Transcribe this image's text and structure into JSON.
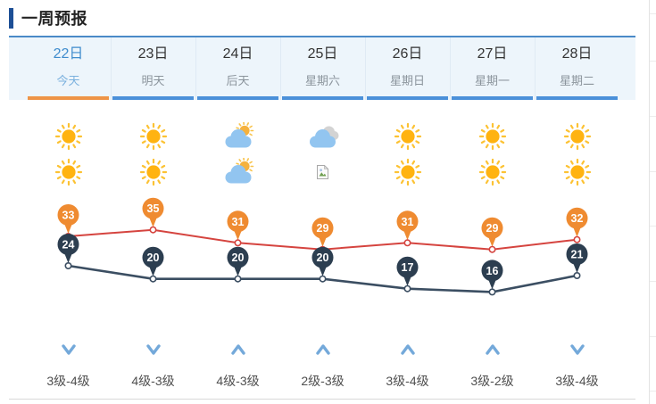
{
  "header": {
    "title": "一周预报"
  },
  "days": [
    {
      "date": "22日",
      "day_label": "今天",
      "active": true,
      "icon_day": "sunny",
      "icon_night": "sunny",
      "high": 33,
      "low": 24,
      "wind_dir": "down",
      "wind_level": "3级-4级"
    },
    {
      "date": "23日",
      "day_label": "明天",
      "active": false,
      "icon_day": "sunny",
      "icon_night": "sunny",
      "high": 35,
      "low": 20,
      "wind_dir": "down",
      "wind_level": "4级-3级"
    },
    {
      "date": "24日",
      "day_label": "后天",
      "active": false,
      "icon_day": "partly-cloudy",
      "icon_night": "partly-cloudy",
      "high": 31,
      "low": 20,
      "wind_dir": "up",
      "wind_level": "4级-3级"
    },
    {
      "date": "25日",
      "day_label": "星期六",
      "active": false,
      "icon_day": "cloudy",
      "icon_night": "broken-image",
      "high": 29,
      "low": 20,
      "wind_dir": "up",
      "wind_level": "2级-3级"
    },
    {
      "date": "26日",
      "day_label": "星期日",
      "active": false,
      "icon_day": "sunny",
      "icon_night": "sunny",
      "high": 31,
      "low": 17,
      "wind_dir": "up",
      "wind_level": "3级-4级"
    },
    {
      "date": "27日",
      "day_label": "星期一",
      "active": false,
      "icon_day": "sunny",
      "icon_night": "sunny",
      "high": 29,
      "low": 16,
      "wind_dir": "up",
      "wind_level": "3级-2级"
    },
    {
      "date": "28日",
      "day_label": "星期二",
      "active": false,
      "icon_day": "sunny",
      "icon_night": "sunny",
      "high": 32,
      "low": 21,
      "wind_dir": "down",
      "wind_level": "3级-4级"
    }
  ],
  "chart_data": {
    "type": "line",
    "categories": [
      "22日",
      "23日",
      "24日",
      "25日",
      "26日",
      "27日",
      "28日"
    ],
    "series": [
      {
        "name": "high",
        "values": [
          33,
          35,
          31,
          29,
          31,
          29,
          32
        ],
        "line_color": "#d5443f",
        "marker_color": "#ef8b31"
      },
      {
        "name": "low",
        "values": [
          24,
          20,
          20,
          20,
          17,
          16,
          21
        ],
        "line_color": "#3b4e62",
        "marker_color": "#2c3e50"
      }
    ],
    "unit": "°C",
    "grid": false,
    "legend": "none",
    "ylim": [
      14,
      37
    ]
  },
  "colors": {
    "accent_bar": "#1d4f96",
    "panel_border": "#4a8ac8",
    "tab_bg": "#edf5fb",
    "active_tab_underline": "#ee9446",
    "tab_underline": "#4b90d9",
    "active_date": "#3f8ccd",
    "high_line": "#d5443f",
    "high_marker": "#ef8b31",
    "low_line": "#3b4e62",
    "low_marker": "#2c3e50",
    "wind_arrow": "#74a9da",
    "sun": "#ffb311",
    "cloud_blue": "#92c5f0",
    "cloud_gray": "#d3d3d3"
  }
}
